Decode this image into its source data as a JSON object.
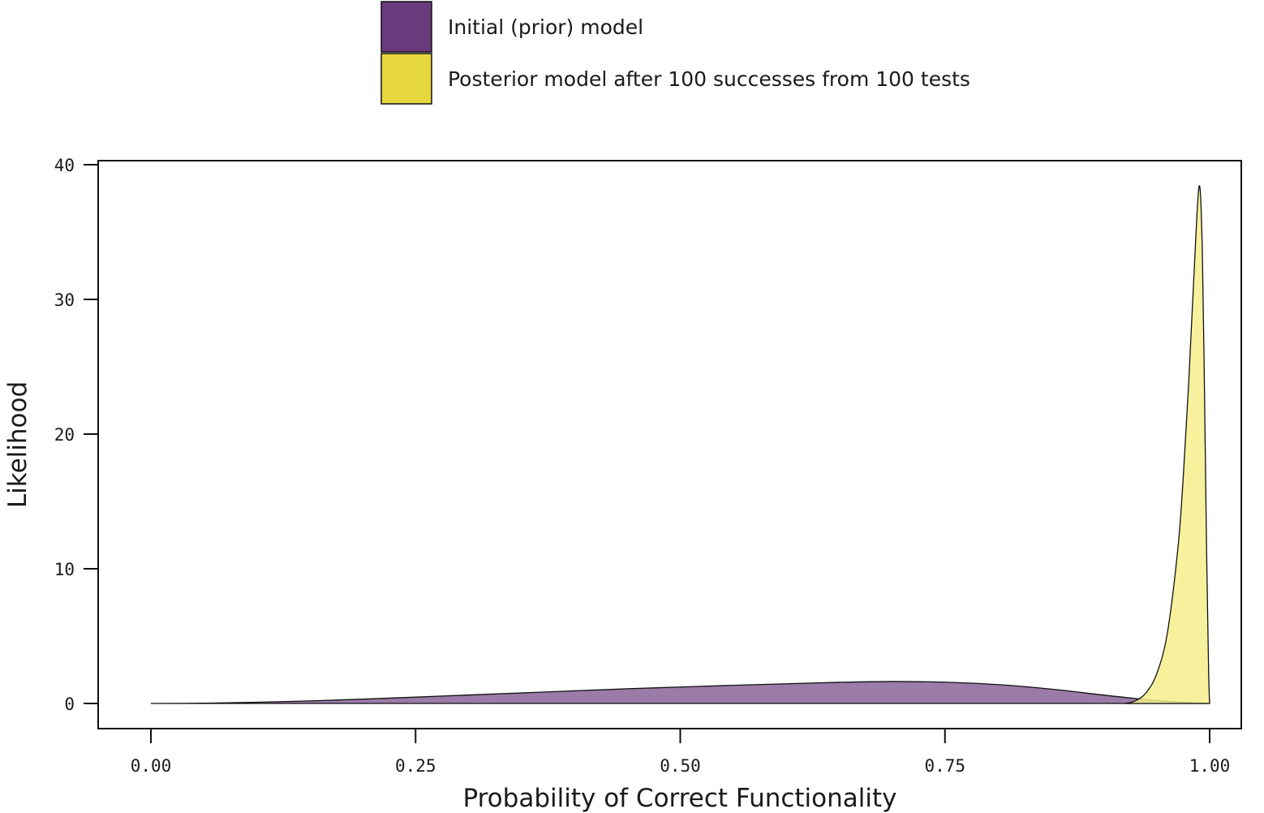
{
  "chart_data": {
    "type": "area",
    "xlabel": "Probability of Correct Functionality",
    "ylabel": "Likelihood",
    "xlim": [
      0,
      1
    ],
    "ylim": [
      0,
      40
    ],
    "x_ticks": [
      "0.00",
      "0.25",
      "0.50",
      "0.75",
      "1.00"
    ],
    "y_ticks": [
      "0",
      "10",
      "20",
      "30",
      "40"
    ],
    "legend_position": "top",
    "series": [
      {
        "name": "Initial (prior) model",
        "color": "#6B3A7D",
        "fill": "#9B7BA8",
        "x": [
          0.0,
          0.05,
          0.1,
          0.15,
          0.2,
          0.25,
          0.3,
          0.35,
          0.4,
          0.45,
          0.5,
          0.55,
          0.6,
          0.65,
          0.7,
          0.75,
          0.8,
          0.85,
          0.9,
          0.94,
          0.97,
          1.0
        ],
        "y": [
          0.0,
          0.02,
          0.09,
          0.19,
          0.32,
          0.47,
          0.63,
          0.78,
          0.94,
          1.09,
          1.22,
          1.35,
          1.46,
          1.57,
          1.63,
          1.58,
          1.4,
          1.07,
          0.62,
          0.29,
          0.11,
          0.0
        ]
      },
      {
        "name": "Posterior model after 100 successes from 100 tests",
        "color": "#E8D840",
        "fill": "#F6EE8C",
        "x": [
          0.92,
          0.93,
          0.94,
          0.95,
          0.96,
          0.97,
          0.975,
          0.98,
          0.985,
          0.99,
          0.993,
          0.995,
          0.997,
          0.999,
          1.0
        ],
        "y": [
          0.0,
          0.2,
          0.8,
          2.2,
          5.2,
          11.5,
          16.7,
          23.5,
          31.5,
          38.4,
          34.0,
          24.0,
          12.0,
          2.5,
          0.0
        ]
      }
    ]
  }
}
